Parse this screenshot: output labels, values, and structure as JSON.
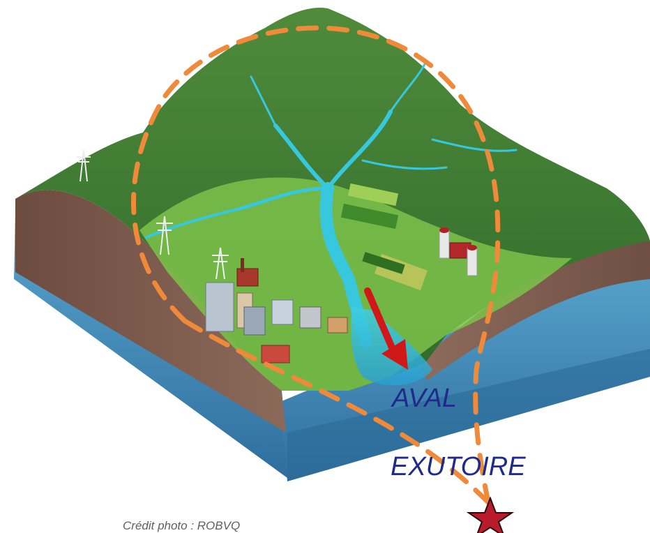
{
  "labels": {
    "downstream": "AVAL",
    "outlet": "EXUTOIRE",
    "credit": "Crédit photo : ROBVQ"
  },
  "colors": {
    "watershed_boundary": "#ee8a3a",
    "flow_arrow": "#d01818",
    "outlet_star": "#b81c2c",
    "label_text": "#1f2a8a",
    "credit_text": "#606060",
    "river": "#33c6dc",
    "sea": "#3e86b4",
    "soil": "#7a5a4c"
  },
  "icons": {
    "flow": "arrow-down-right-icon",
    "outlet": "star-icon"
  }
}
